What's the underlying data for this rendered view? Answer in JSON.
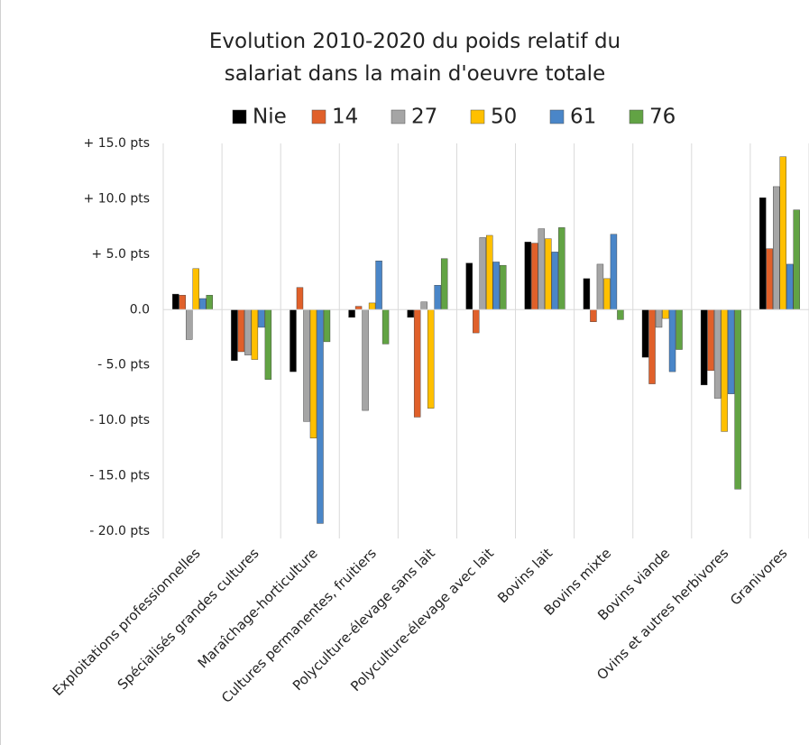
{
  "chart_data": {
    "type": "bar",
    "title": "Evolution 2010-2020 du poids relatif du salariat dans la main d'oeuvre totale",
    "categories": [
      "Exploitations professionnelles",
      "Spécialisés grandes cultures",
      "Maraîchage-horticulture",
      "Cultures permanentes, fruitiers",
      "Polyculture-élevage sans lait",
      "Polyculture-élevage avec lait",
      "Bovins lait",
      "Bovins mixte",
      "Bovins viande",
      "Ovins et autres herbivores",
      "Granivores"
    ],
    "series": [
      {
        "name": "Nie",
        "color": "#000000",
        "values": [
          1.4,
          -4.6,
          -5.6,
          -0.7,
          -0.7,
          4.2,
          6.1,
          2.8,
          -4.3,
          -6.8,
          10.1
        ]
      },
      {
        "name": "14",
        "color": "#e0602a",
        "values": [
          1.3,
          -3.8,
          2.0,
          0.3,
          -9.7,
          -2.1,
          6.0,
          -1.1,
          -6.7,
          -5.5,
          5.5
        ]
      },
      {
        "name": "27",
        "color": "#a5a5a5",
        "values": [
          -2.7,
          -4.1,
          -10.1,
          -9.1,
          0.7,
          6.5,
          7.3,
          4.1,
          -1.6,
          -8.0,
          11.1
        ]
      },
      {
        "name": "50",
        "color": "#ffc000",
        "values": [
          3.7,
          -4.5,
          -11.6,
          0.6,
          -8.9,
          6.7,
          6.4,
          2.8,
          -0.8,
          -11.0,
          13.8
        ]
      },
      {
        "name": "61",
        "color": "#4a86c8",
        "values": [
          1.0,
          -1.6,
          -19.3,
          4.4,
          2.2,
          4.3,
          5.2,
          6.8,
          -5.6,
          -7.6,
          4.1
        ]
      },
      {
        "name": "76",
        "color": "#62a344",
        "values": [
          1.3,
          -6.3,
          -2.9,
          -3.1,
          4.6,
          4.0,
          7.4,
          -0.9,
          -3.6,
          -16.2,
          9.0
        ]
      }
    ],
    "ylim": [
      -20,
      15
    ],
    "yticks": [
      {
        "value": -20,
        "label": "- 20.0 pts"
      },
      {
        "value": -15,
        "label": "- 15.0 pts"
      },
      {
        "value": -10,
        "label": "- 10.0 pts"
      },
      {
        "value": -5,
        "label": "- 5.0 pts"
      },
      {
        "value": 0,
        "label": "0.0"
      },
      {
        "value": 5,
        "label": "+ 5.0 pts"
      },
      {
        "value": 10,
        "label": "+ 10.0 pts"
      },
      {
        "value": 15,
        "label": "+ 15.0 pts"
      }
    ],
    "grid": true,
    "legend": "top"
  }
}
